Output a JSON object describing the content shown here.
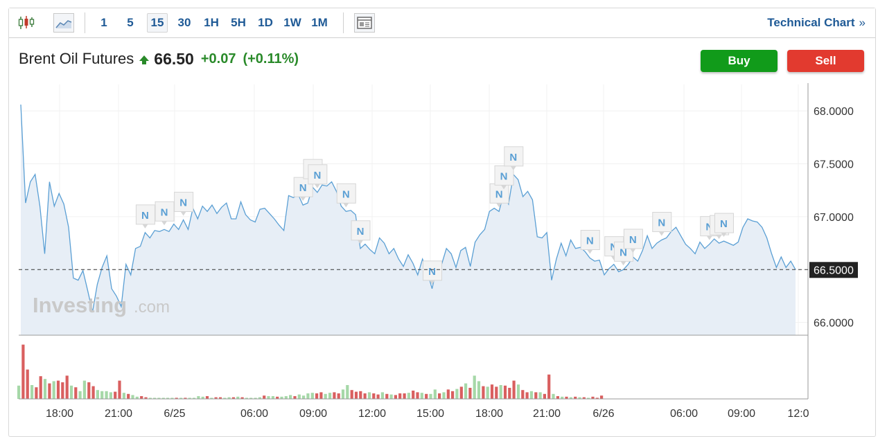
{
  "toolbar": {
    "intervals": [
      "1",
      "5",
      "15",
      "30",
      "1H",
      "5H",
      "1D",
      "1W",
      "1M"
    ],
    "active_interval": "15",
    "technical_link": "Technical Chart",
    "technical_link_chevron": "»",
    "icons": [
      "candlestick-icon",
      "area-chart-icon",
      "layout-icon"
    ]
  },
  "header": {
    "instrument": "Brent Oil Futures",
    "price": "66.50",
    "change": "+0.07",
    "change_pct": "(+0.11%)",
    "direction": "up"
  },
  "actions": {
    "buy": "Buy",
    "sell": "Sell"
  },
  "watermark": {
    "brand": "Investing",
    "suffix": ".com"
  },
  "colors": {
    "line": "#5a9fd4",
    "area": "#e7eef6",
    "up_volume": "#a6d8a8",
    "down_volume": "#d95f5f",
    "accent": "#1f5a96",
    "buy": "#119b1a",
    "sell": "#e23a2f"
  },
  "chart_data": {
    "type": "area",
    "y_ticks": [
      "68.0000",
      "67.5000",
      "67.0000",
      "66.5000",
      "66.0000"
    ],
    "ylim": [
      65.88,
      68.25
    ],
    "x_ticks": [
      "18:00",
      "21:00",
      "6/25",
      "06:00",
      "09:00",
      "12:00",
      "15:00",
      "18:00",
      "21:00",
      "6/26",
      "06:00",
      "09:00",
      "12:0"
    ],
    "current_price_label": "66.5000",
    "current_price": 66.5,
    "news_marker_label": "N",
    "series": [
      {
        "values": [
          68.06,
          67.13,
          67.33,
          67.4,
          67.1,
          66.65,
          67.33,
          67.1,
          67.22,
          67.12,
          66.9,
          66.42,
          66.4,
          66.49,
          66.3,
          66.1,
          66.36,
          66.52,
          66.63,
          66.32,
          66.25,
          66.15,
          66.55,
          66.45,
          66.7,
          66.72,
          66.85,
          66.8,
          66.87,
          66.86,
          66.88,
          66.86,
          66.93,
          66.88,
          66.97,
          66.88,
          67.08,
          66.98,
          67.1,
          67.05,
          67.11,
          67.03,
          67.09,
          67.13,
          66.98,
          66.98,
          67.14,
          67.02,
          66.97,
          66.95,
          67.07,
          67.08,
          67.03,
          66.98,
          66.92,
          66.87,
          67.2,
          67.18,
          67.21,
          67.11,
          67.13,
          67.28,
          67.23,
          67.3,
          67.29,
          67.33,
          67.24,
          67.1,
          67.05,
          67.06,
          67.02,
          66.7,
          66.74,
          66.69,
          66.65,
          66.8,
          66.75,
          66.65,
          66.7,
          66.6,
          66.53,
          66.64,
          66.56,
          66.45,
          66.6,
          66.48,
          66.32,
          66.52,
          66.55,
          66.7,
          66.65,
          66.52,
          66.68,
          66.71,
          66.53,
          66.76,
          66.83,
          66.88,
          67.05,
          67.08,
          67.05,
          67.22,
          67.12,
          67.4,
          67.35,
          67.19,
          67.24,
          67.16,
          66.81,
          66.8,
          66.85,
          66.4,
          66.6,
          66.75,
          66.63,
          66.78,
          66.7,
          66.71,
          66.67,
          66.61,
          66.58,
          66.59,
          66.45,
          66.51,
          66.55,
          66.48,
          66.5,
          66.55,
          66.62,
          66.58,
          66.68,
          66.82,
          66.7,
          66.75,
          66.78,
          66.8,
          66.86,
          66.9,
          66.82,
          66.74,
          66.7,
          66.65,
          66.76,
          66.7,
          66.74,
          66.79,
          66.75,
          66.77,
          66.75,
          66.73,
          66.76,
          66.9,
          66.98,
          66.96,
          66.95,
          66.9,
          66.8,
          66.65,
          66.52,
          66.62,
          66.52,
          66.58,
          66.5
        ]
      }
    ],
    "volume": [
      [
        "u",
        0.24
      ],
      [
        "d",
        0.98
      ],
      [
        "d",
        0.53
      ],
      [
        "u",
        0.25
      ],
      [
        "d",
        0.21
      ],
      [
        "d",
        0.41
      ],
      [
        "u",
        0.36
      ],
      [
        "d",
        0.28
      ],
      [
        "u",
        0.32
      ],
      [
        "d",
        0.33
      ],
      [
        "d",
        0.3
      ],
      [
        "d",
        0.42
      ],
      [
        "u",
        0.24
      ],
      [
        "d",
        0.21
      ],
      [
        "u",
        0.14
      ],
      [
        "u",
        0.33
      ],
      [
        "d",
        0.3
      ],
      [
        "d",
        0.23
      ],
      [
        "u",
        0.16
      ],
      [
        "u",
        0.14
      ],
      [
        "u",
        0.14
      ],
      [
        "u",
        0.12
      ],
      [
        "d",
        0.13
      ],
      [
        "d",
        0.33
      ],
      [
        "u",
        0.11
      ],
      [
        "d",
        0.09
      ],
      [
        "u",
        0.07
      ],
      [
        "u",
        0.04
      ],
      [
        "d",
        0.05
      ],
      [
        "d",
        0.03
      ],
      [
        "u",
        0.02
      ],
      [
        "u",
        0.02
      ],
      [
        "u",
        0.02
      ],
      [
        "u",
        0.02
      ],
      [
        "u",
        0.02
      ],
      [
        "u",
        0.02
      ],
      [
        "d",
        0.02
      ],
      [
        "u",
        0.02
      ],
      [
        "d",
        0.02
      ],
      [
        "u",
        0.02
      ],
      [
        "u",
        0.02
      ],
      [
        "u",
        0.05
      ],
      [
        "u",
        0.04
      ],
      [
        "d",
        0.05
      ],
      [
        "u",
        0.02
      ],
      [
        "d",
        0.03
      ],
      [
        "d",
        0.03
      ],
      [
        "u",
        0.02
      ],
      [
        "u",
        0.03
      ],
      [
        "d",
        0.03
      ],
      [
        "u",
        0.04
      ],
      [
        "d",
        0.03
      ],
      [
        "u",
        0.02
      ],
      [
        "u",
        0.02
      ],
      [
        "u",
        0.02
      ],
      [
        "u",
        0.03
      ],
      [
        "d",
        0.06
      ],
      [
        "u",
        0.05
      ],
      [
        "u",
        0.05
      ],
      [
        "d",
        0.04
      ],
      [
        "u",
        0.04
      ],
      [
        "u",
        0.05
      ],
      [
        "u",
        0.07
      ],
      [
        "d",
        0.05
      ],
      [
        "u",
        0.08
      ],
      [
        "u",
        0.06
      ],
      [
        "u",
        0.1
      ],
      [
        "u",
        0.11
      ],
      [
        "d",
        0.1
      ],
      [
        "d",
        0.12
      ],
      [
        "u",
        0.09
      ],
      [
        "u",
        0.11
      ],
      [
        "d",
        0.12
      ],
      [
        "d",
        0.1
      ],
      [
        "u",
        0.17
      ],
      [
        "u",
        0.25
      ],
      [
        "d",
        0.16
      ],
      [
        "d",
        0.13
      ],
      [
        "d",
        0.14
      ],
      [
        "d",
        0.1
      ],
      [
        "u",
        0.12
      ],
      [
        "d",
        0.1
      ],
      [
        "d",
        0.08
      ],
      [
        "u",
        0.12
      ],
      [
        "d",
        0.09
      ],
      [
        "u",
        0.08
      ],
      [
        "d",
        0.07
      ],
      [
        "d",
        0.1
      ],
      [
        "d",
        0.1
      ],
      [
        "u",
        0.11
      ],
      [
        "d",
        0.15
      ],
      [
        "d",
        0.12
      ],
      [
        "u",
        0.11
      ],
      [
        "d",
        0.09
      ],
      [
        "u",
        0.09
      ],
      [
        "u",
        0.17
      ],
      [
        "d",
        0.1
      ],
      [
        "u",
        0.12
      ],
      [
        "d",
        0.17
      ],
      [
        "d",
        0.14
      ],
      [
        "u",
        0.18
      ],
      [
        "d",
        0.22
      ],
      [
        "u",
        0.28
      ],
      [
        "d",
        0.2
      ],
      [
        "u",
        0.42
      ],
      [
        "u",
        0.32
      ],
      [
        "d",
        0.23
      ],
      [
        "u",
        0.22
      ],
      [
        "d",
        0.26
      ],
      [
        "d",
        0.22
      ],
      [
        "u",
        0.25
      ],
      [
        "d",
        0.24
      ],
      [
        "d",
        0.2
      ],
      [
        "d",
        0.33
      ],
      [
        "u",
        0.26
      ],
      [
        "d",
        0.16
      ],
      [
        "d",
        0.12
      ],
      [
        "u",
        0.14
      ],
      [
        "d",
        0.12
      ],
      [
        "u",
        0.12
      ],
      [
        "d",
        0.09
      ],
      [
        "d",
        0.44
      ],
      [
        "u",
        0.09
      ],
      [
        "d",
        0.05
      ],
      [
        "u",
        0.04
      ],
      [
        "d",
        0.04
      ],
      [
        "u",
        0.03
      ],
      [
        "d",
        0.04
      ],
      [
        "u",
        0.03
      ],
      [
        "d",
        0.03
      ],
      [
        "u",
        0.02
      ],
      [
        "d",
        0.04
      ],
      [
        "d",
        0.02
      ],
      [
        "d",
        0.06
      ]
    ],
    "news_markers": [
      {
        "i": 26,
        "label": "N"
      },
      {
        "i": 30,
        "label": "N"
      },
      {
        "i": 34,
        "label": "N"
      },
      {
        "i": 59,
        "label": "N"
      },
      {
        "i": 61,
        "label": "N"
      },
      {
        "i": 62,
        "label": "N"
      },
      {
        "i": 68,
        "label": "N"
      },
      {
        "i": 71,
        "label": "N"
      },
      {
        "i": 86,
        "label": "N"
      },
      {
        "i": 100,
        "label": "N"
      },
      {
        "i": 101,
        "label": "N"
      },
      {
        "i": 103,
        "label": "N"
      },
      {
        "i": 119,
        "label": "N"
      },
      {
        "i": 124,
        "label": "N"
      },
      {
        "i": 126,
        "label": "N"
      },
      {
        "i": 128,
        "label": "N"
      },
      {
        "i": 134,
        "label": "N"
      },
      {
        "i": 144,
        "label": "N"
      },
      {
        "i": 146,
        "label": "N"
      },
      {
        "i": 147,
        "label": "N"
      }
    ]
  }
}
